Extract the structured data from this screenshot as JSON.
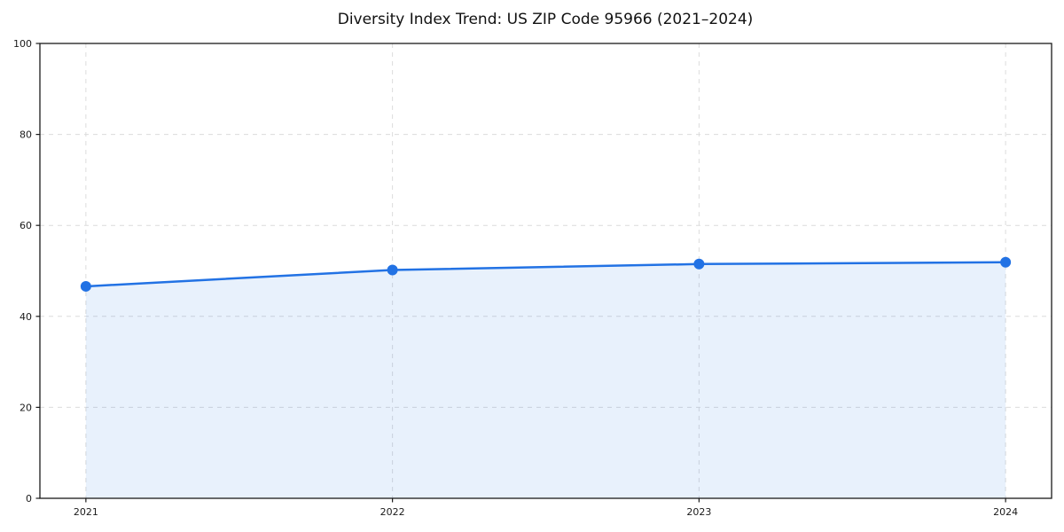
{
  "chart_data": {
    "type": "area",
    "title": "Diversity Index Trend: US ZIP Code 95966 (2021–2024)",
    "x": [
      2021,
      2022,
      2023,
      2024
    ],
    "series": [
      {
        "name": "Diversity Index",
        "values": [
          46.6,
          50.2,
          51.5,
          51.9
        ]
      }
    ],
    "xlabel": "",
    "ylabel": "",
    "xlim": [
      2020.85,
      2024.15
    ],
    "ylim": [
      0,
      100
    ],
    "xticks": [
      2021,
      2022,
      2023,
      2024
    ],
    "yticks": [
      0,
      20,
      40,
      60,
      80,
      100
    ],
    "grid": true,
    "legend": false,
    "colors": {
      "line": "#2272e4",
      "marker": "#2272e4",
      "fill": "rgba(34,114,228,0.10)",
      "grid": "#dcdcdc",
      "spine": "#1a1a1a",
      "tick_label": "#1a1a1a",
      "background": "#ffffff"
    }
  },
  "layout_hints": {
    "grid_style": "dashed",
    "legend_position": "none",
    "marker_shape": "circle"
  }
}
